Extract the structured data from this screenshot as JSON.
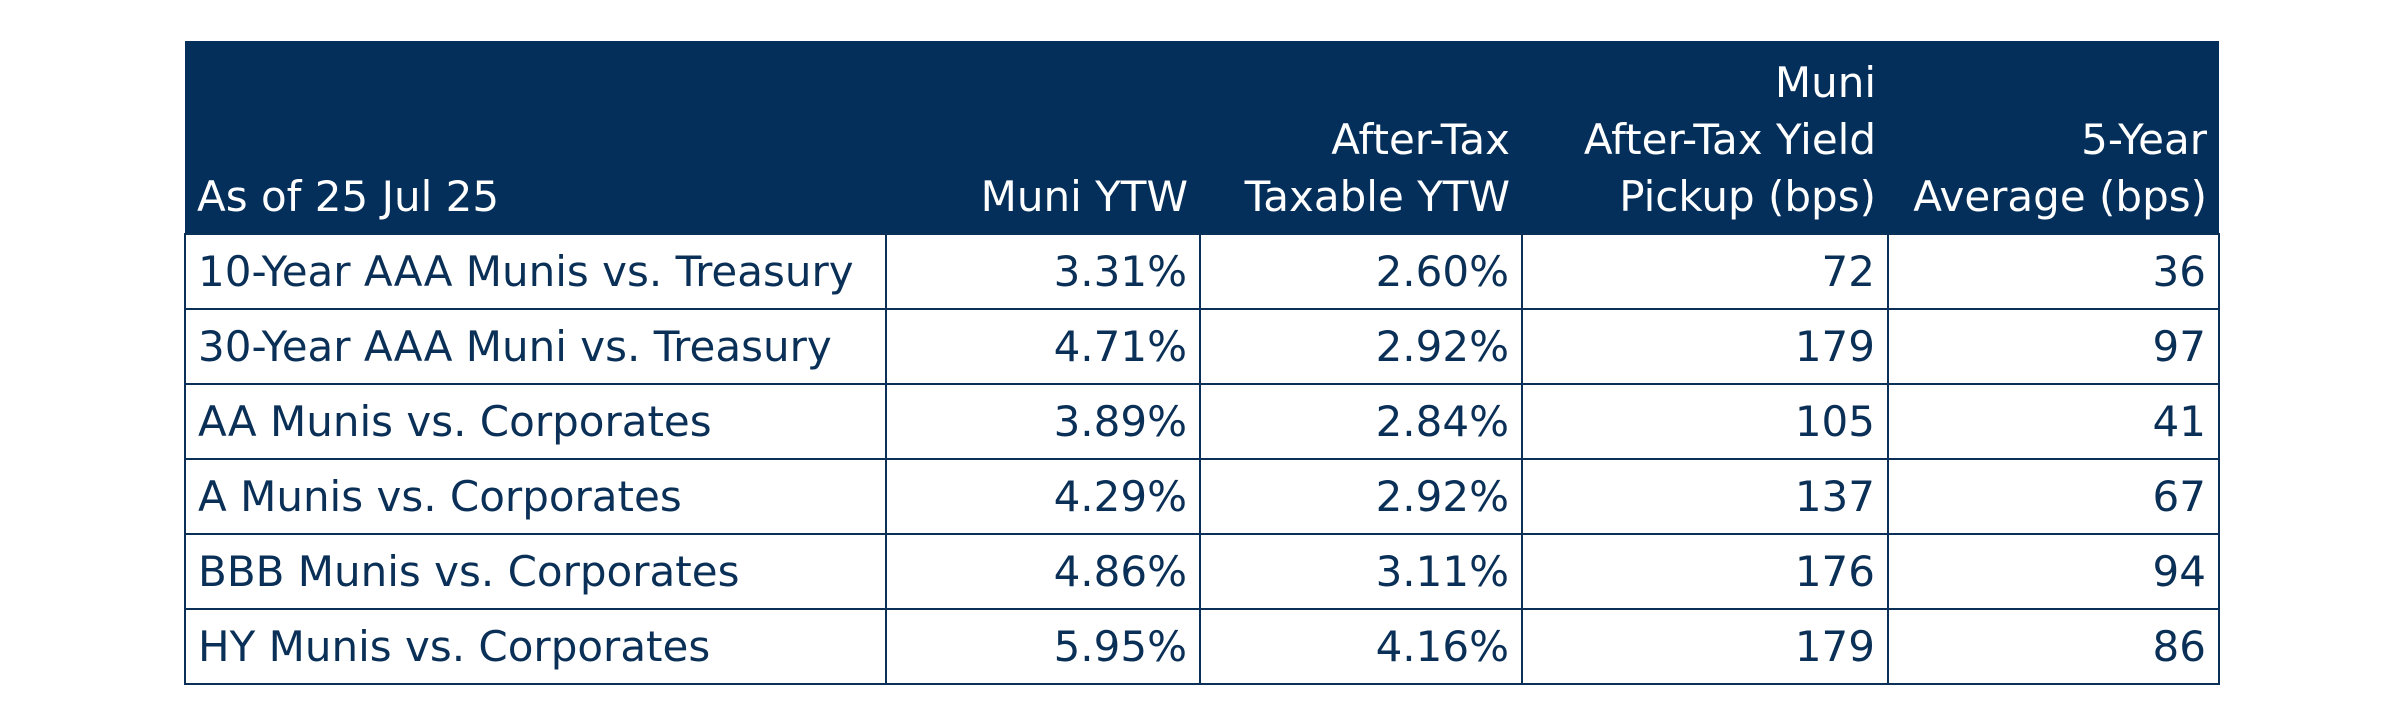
{
  "table": {
    "headers": [
      [
        "As of 25 Jul 25"
      ],
      [
        "Muni YTW"
      ],
      [
        "After-Tax",
        "Taxable YTW"
      ],
      [
        "Muni",
        "After-Tax Yield",
        "Pickup (bps)"
      ],
      [
        "5-Year",
        "Average (bps)"
      ]
    ],
    "rows": [
      [
        "10-Year AAA Munis vs. Treasury",
        "3.31%",
        "2.60%",
        "72",
        "36"
      ],
      [
        "30-Year AAA Muni vs. Treasury",
        "4.71%",
        "2.92%",
        "179",
        "97"
      ],
      [
        "AA Munis vs. Corporates",
        "3.89%",
        "2.84%",
        "105",
        "41"
      ],
      [
        "A Munis vs. Corporates",
        "4.29%",
        "2.92%",
        "137",
        "67"
      ],
      [
        "BBB Munis vs. Corporates",
        "4.86%",
        "3.11%",
        "176",
        "94"
      ],
      [
        "HY Munis vs. Corporates",
        "5.95%",
        "4.16%",
        "179",
        "86"
      ]
    ]
  },
  "colors": {
    "header_background": "#042f5b",
    "header_text": "#ffffff",
    "body_text": "#0b3057",
    "border": "#0b3057"
  }
}
